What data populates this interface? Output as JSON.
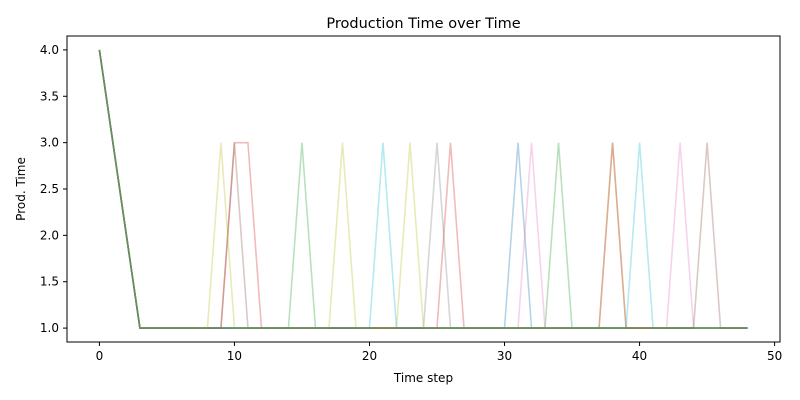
{
  "chart_data": {
    "type": "line",
    "title": "Production Time over Time",
    "xlabel": "Time step",
    "ylabel": "Prod. Time",
    "xlim": [
      -2.4,
      50.4
    ],
    "ylim": [
      0.85,
      4.15
    ],
    "x_ticks": [
      0,
      10,
      20,
      30,
      40,
      50
    ],
    "x_tick_labels": [
      "0",
      "10",
      "20",
      "30",
      "40",
      "50"
    ],
    "y_ticks": [
      1.0,
      1.5,
      2.0,
      2.5,
      3.0,
      3.5,
      4.0
    ],
    "y_tick_labels": [
      "1.0",
      "1.5",
      "2.0",
      "2.5",
      "3.0",
      "3.5",
      "4.0"
    ],
    "grid": false,
    "legend": false,
    "x_max": 48,
    "baseline": {
      "initial": 4,
      "settle_step": 3,
      "steady": 1
    },
    "series": [
      {
        "color": "#1f77b4",
        "peaks": [
          [
            31,
            3
          ]
        ]
      },
      {
        "color": "#ff7f0e",
        "peaks": [
          [
            38,
            3
          ]
        ]
      },
      {
        "color": "#2ca02c",
        "peaks": [
          [
            15,
            3
          ],
          [
            34,
            3
          ]
        ]
      },
      {
        "color": "#d62728",
        "peaks": [
          [
            10,
            3
          ],
          [
            11,
            3
          ],
          [
            26,
            3
          ]
        ]
      },
      {
        "color": "#9467bd",
        "peaks": []
      },
      {
        "color": "#8c564b",
        "peaks": [
          [
            10,
            3
          ],
          [
            38,
            3
          ]
        ]
      },
      {
        "color": "#e377c2",
        "peaks": [
          [
            32,
            3
          ],
          [
            43,
            3
          ]
        ]
      },
      {
        "color": "#7f7f7f",
        "peaks": [
          [
            25,
            3
          ]
        ]
      },
      {
        "color": "#bcbd22",
        "peaks": [
          [
            9,
            3
          ],
          [
            18,
            3
          ],
          [
            23,
            3
          ]
        ]
      },
      {
        "color": "#17becf",
        "peaks": [
          [
            21,
            3
          ],
          [
            40,
            3
          ]
        ]
      },
      {
        "color": "#8c564b",
        "peaks": [
          [
            45,
            3
          ]
        ]
      },
      {
        "color": "#2ca02c",
        "peaks": []
      }
    ]
  }
}
